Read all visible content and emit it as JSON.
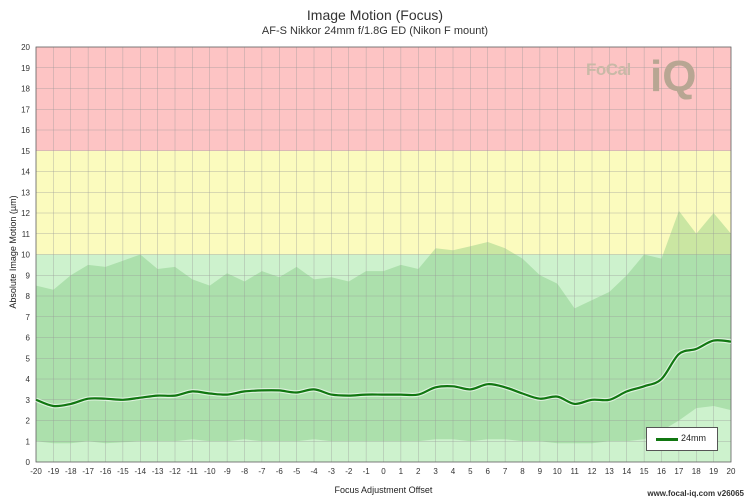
{
  "chart_data": {
    "type": "line",
    "title": "Image Motion (Focus)",
    "subtitle": "AF-S Nikkor 24mm f/1.8G ED (Nikon F mount)",
    "xlabel": "Focus Adjustment Offset",
    "ylabel": "Absolute Image Motion (µm)",
    "xlim": [
      -20,
      20
    ],
    "ylim": [
      0,
      20
    ],
    "grid": true,
    "legend_position": "bottom-right",
    "zones": [
      {
        "from": 0,
        "to": 10,
        "color": "#cdf2cd"
      },
      {
        "from": 10,
        "to": 15,
        "color": "#fbfbbe"
      },
      {
        "from": 15,
        "to": 20,
        "color": "#fdc4c4"
      }
    ],
    "x": [
      -20,
      -19,
      -18,
      -17,
      -16,
      -15,
      -14,
      -13,
      -12,
      -11,
      -10,
      -9,
      -8,
      -7,
      -6,
      -5,
      -4,
      -3,
      -2,
      -1,
      0,
      1,
      2,
      3,
      4,
      5,
      6,
      7,
      8,
      9,
      10,
      11,
      12,
      13,
      14,
      15,
      16,
      17,
      18,
      19,
      20
    ],
    "series": [
      {
        "name": "24mm",
        "color": "#117711",
        "values": [
          3.0,
          2.7,
          2.8,
          3.05,
          3.05,
          3.0,
          3.1,
          3.2,
          3.2,
          3.4,
          3.3,
          3.25,
          3.4,
          3.45,
          3.45,
          3.35,
          3.5,
          3.25,
          3.2,
          3.25,
          3.25,
          3.25,
          3.25,
          3.6,
          3.65,
          3.5,
          3.75,
          3.6,
          3.3,
          3.05,
          3.15,
          2.8,
          3.0,
          3.0,
          3.4,
          3.65,
          4.0,
          5.2,
          5.45,
          5.85,
          5.8
        ],
        "band_upper": [
          8.5,
          8.3,
          9.0,
          9.5,
          9.4,
          9.7,
          10.0,
          9.3,
          9.4,
          8.8,
          8.5,
          9.1,
          8.7,
          9.2,
          8.9,
          9.4,
          8.8,
          8.9,
          8.7,
          9.2,
          9.2,
          9.5,
          9.3,
          10.3,
          10.2,
          10.4,
          10.6,
          10.3,
          9.8,
          9.0,
          8.6,
          7.4,
          7.8,
          8.2,
          9.0,
          10.0,
          9.8,
          12.1,
          11.0,
          12.0,
          11.0
        ],
        "band_lower": [
          1.0,
          0.9,
          0.9,
          1.0,
          0.9,
          0.95,
          1.0,
          1.0,
          1.0,
          1.1,
          1.0,
          1.0,
          1.1,
          1.0,
          1.0,
          1.0,
          1.1,
          1.0,
          1.0,
          1.0,
          1.0,
          1.0,
          1.0,
          1.1,
          1.1,
          1.0,
          1.1,
          1.1,
          1.0,
          1.0,
          0.9,
          0.9,
          0.9,
          1.0,
          1.0,
          1.1,
          1.5,
          2.0,
          2.6,
          2.7,
          2.5
        ]
      }
    ]
  },
  "footer": "www.focal-iq.com  v26065",
  "logo": {
    "text_left": "FoCal",
    "text_right": "iQ"
  },
  "colors": {
    "grid": "#999999",
    "axis": "#666666",
    "band_fill": "#6fbf6f"
  }
}
